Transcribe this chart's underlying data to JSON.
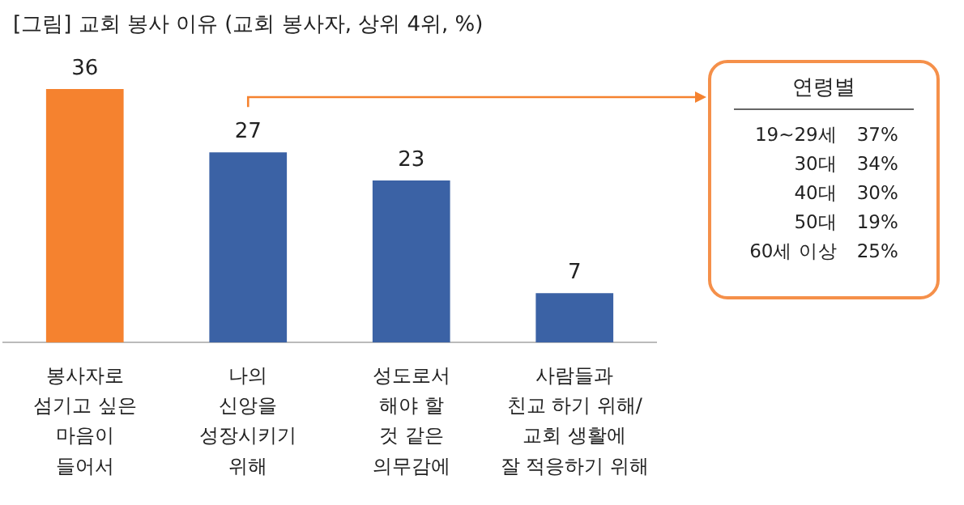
{
  "chart_data": {
    "type": "bar",
    "title": "[그림] 교회 봉사 이유 (교회 봉사자, 상위 4위, %)",
    "categories": [
      "봉사자로\n섬기고 싶은\n마음이\n들어서",
      "나의\n신앙을\n성장시키기\n위해",
      "성도로서\n해야 할\n것 같은\n의무감에",
      "사람들과\n친교 하기 위해/\n교회 생활에\n잘 적응하기 위해"
    ],
    "values": [
      36,
      27,
      23,
      7
    ],
    "colors": [
      "#f5822f",
      "#3b62a5",
      "#3b62a5",
      "#3b62a5"
    ],
    "data_labels": true,
    "annotations": [
      "연령별",
      "19~29세",
      "37%",
      "30대",
      "34%",
      "40대",
      "30%",
      "50대",
      "19%",
      "60세 이상",
      "25%"
    ]
  }
}
